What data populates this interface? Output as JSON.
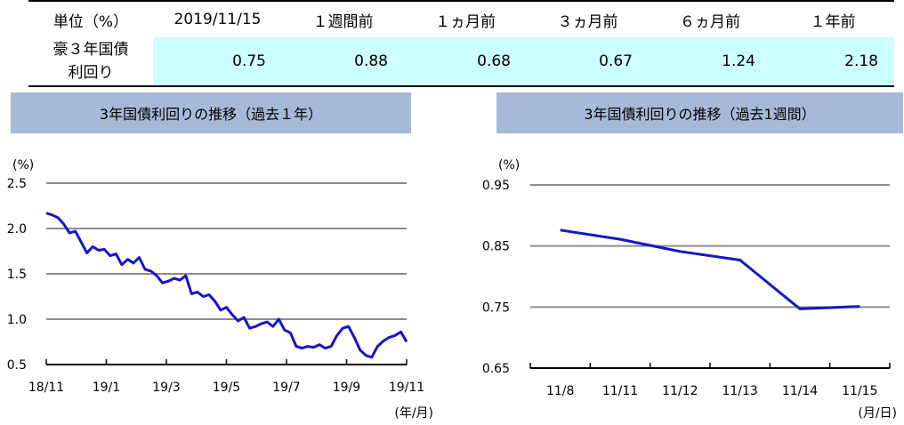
{
  "table": {
    "headers": [
      "単位（%）",
      "2019/11/15",
      "１週間前",
      "１ヵ月前",
      "３ヵ月前",
      "６ヵ月前",
      "１年前"
    ],
    "row_label": [
      "豪３年国債",
      "利回り"
    ],
    "values": [
      "0.75",
      "0.88",
      "0.68",
      "0.67",
      "1.24",
      "2.18"
    ]
  },
  "chart_data": [
    {
      "type": "line",
      "title": "3年国債利回りの推移（過去１年）",
      "ylabel": "(%)",
      "xlabel": "(年/月)",
      "ylim": [
        0.5,
        2.5
      ],
      "yticks": [
        "0.5",
        "1.0",
        "1.5",
        "2.0",
        "2.5"
      ],
      "xticks": [
        "18/11",
        "19/1",
        "19/3",
        "19/5",
        "19/7",
        "19/9",
        "19/11"
      ],
      "color": "#1515c8",
      "grid": true,
      "series": [
        {
          "x": [
            0,
            1,
            2,
            3,
            4,
            5,
            6,
            7,
            8,
            9,
            10,
            11,
            12,
            13,
            14,
            15,
            16,
            17,
            18,
            19,
            20,
            21,
            22,
            23,
            24,
            25,
            26,
            27,
            28,
            29,
            30,
            31,
            32,
            33,
            34,
            35,
            36,
            37,
            38,
            39,
            40,
            41,
            42,
            43,
            44,
            45,
            46,
            47,
            48,
            49,
            50,
            51,
            52,
            53,
            54,
            55,
            56,
            57,
            58,
            59,
            60,
            61,
            62
          ],
          "values": [
            2.17,
            2.15,
            2.12,
            2.05,
            1.95,
            1.97,
            1.85,
            1.73,
            1.8,
            1.76,
            1.77,
            1.7,
            1.72,
            1.6,
            1.66,
            1.62,
            1.68,
            1.55,
            1.53,
            1.48,
            1.4,
            1.42,
            1.45,
            1.43,
            1.48,
            1.28,
            1.3,
            1.25,
            1.27,
            1.2,
            1.1,
            1.13,
            1.05,
            0.98,
            1.02,
            0.9,
            0.92,
            0.95,
            0.97,
            0.92,
            1.0,
            0.88,
            0.85,
            0.7,
            0.68,
            0.7,
            0.69,
            0.72,
            0.68,
            0.7,
            0.82,
            0.9,
            0.92,
            0.8,
            0.66,
            0.6,
            0.58,
            0.7,
            0.76,
            0.8,
            0.82,
            0.86,
            0.75
          ]
        }
      ]
    },
    {
      "type": "line",
      "title": "3年国債利回りの推移（過去1週間）",
      "ylabel": "(%)",
      "xlabel": "(月/日)",
      "ylim": [
        0.65,
        0.95
      ],
      "yticks": [
        "0.65",
        "0.75",
        "0.85",
        "0.95"
      ],
      "categories": [
        "11/8",
        "11/11",
        "11/12",
        "11/13",
        "11/14",
        "11/15"
      ],
      "color": "#1515c8",
      "grid": true,
      "series": [
        {
          "values": [
            0.876,
            0.861,
            0.841,
            0.827,
            0.747,
            0.751
          ]
        }
      ]
    }
  ]
}
